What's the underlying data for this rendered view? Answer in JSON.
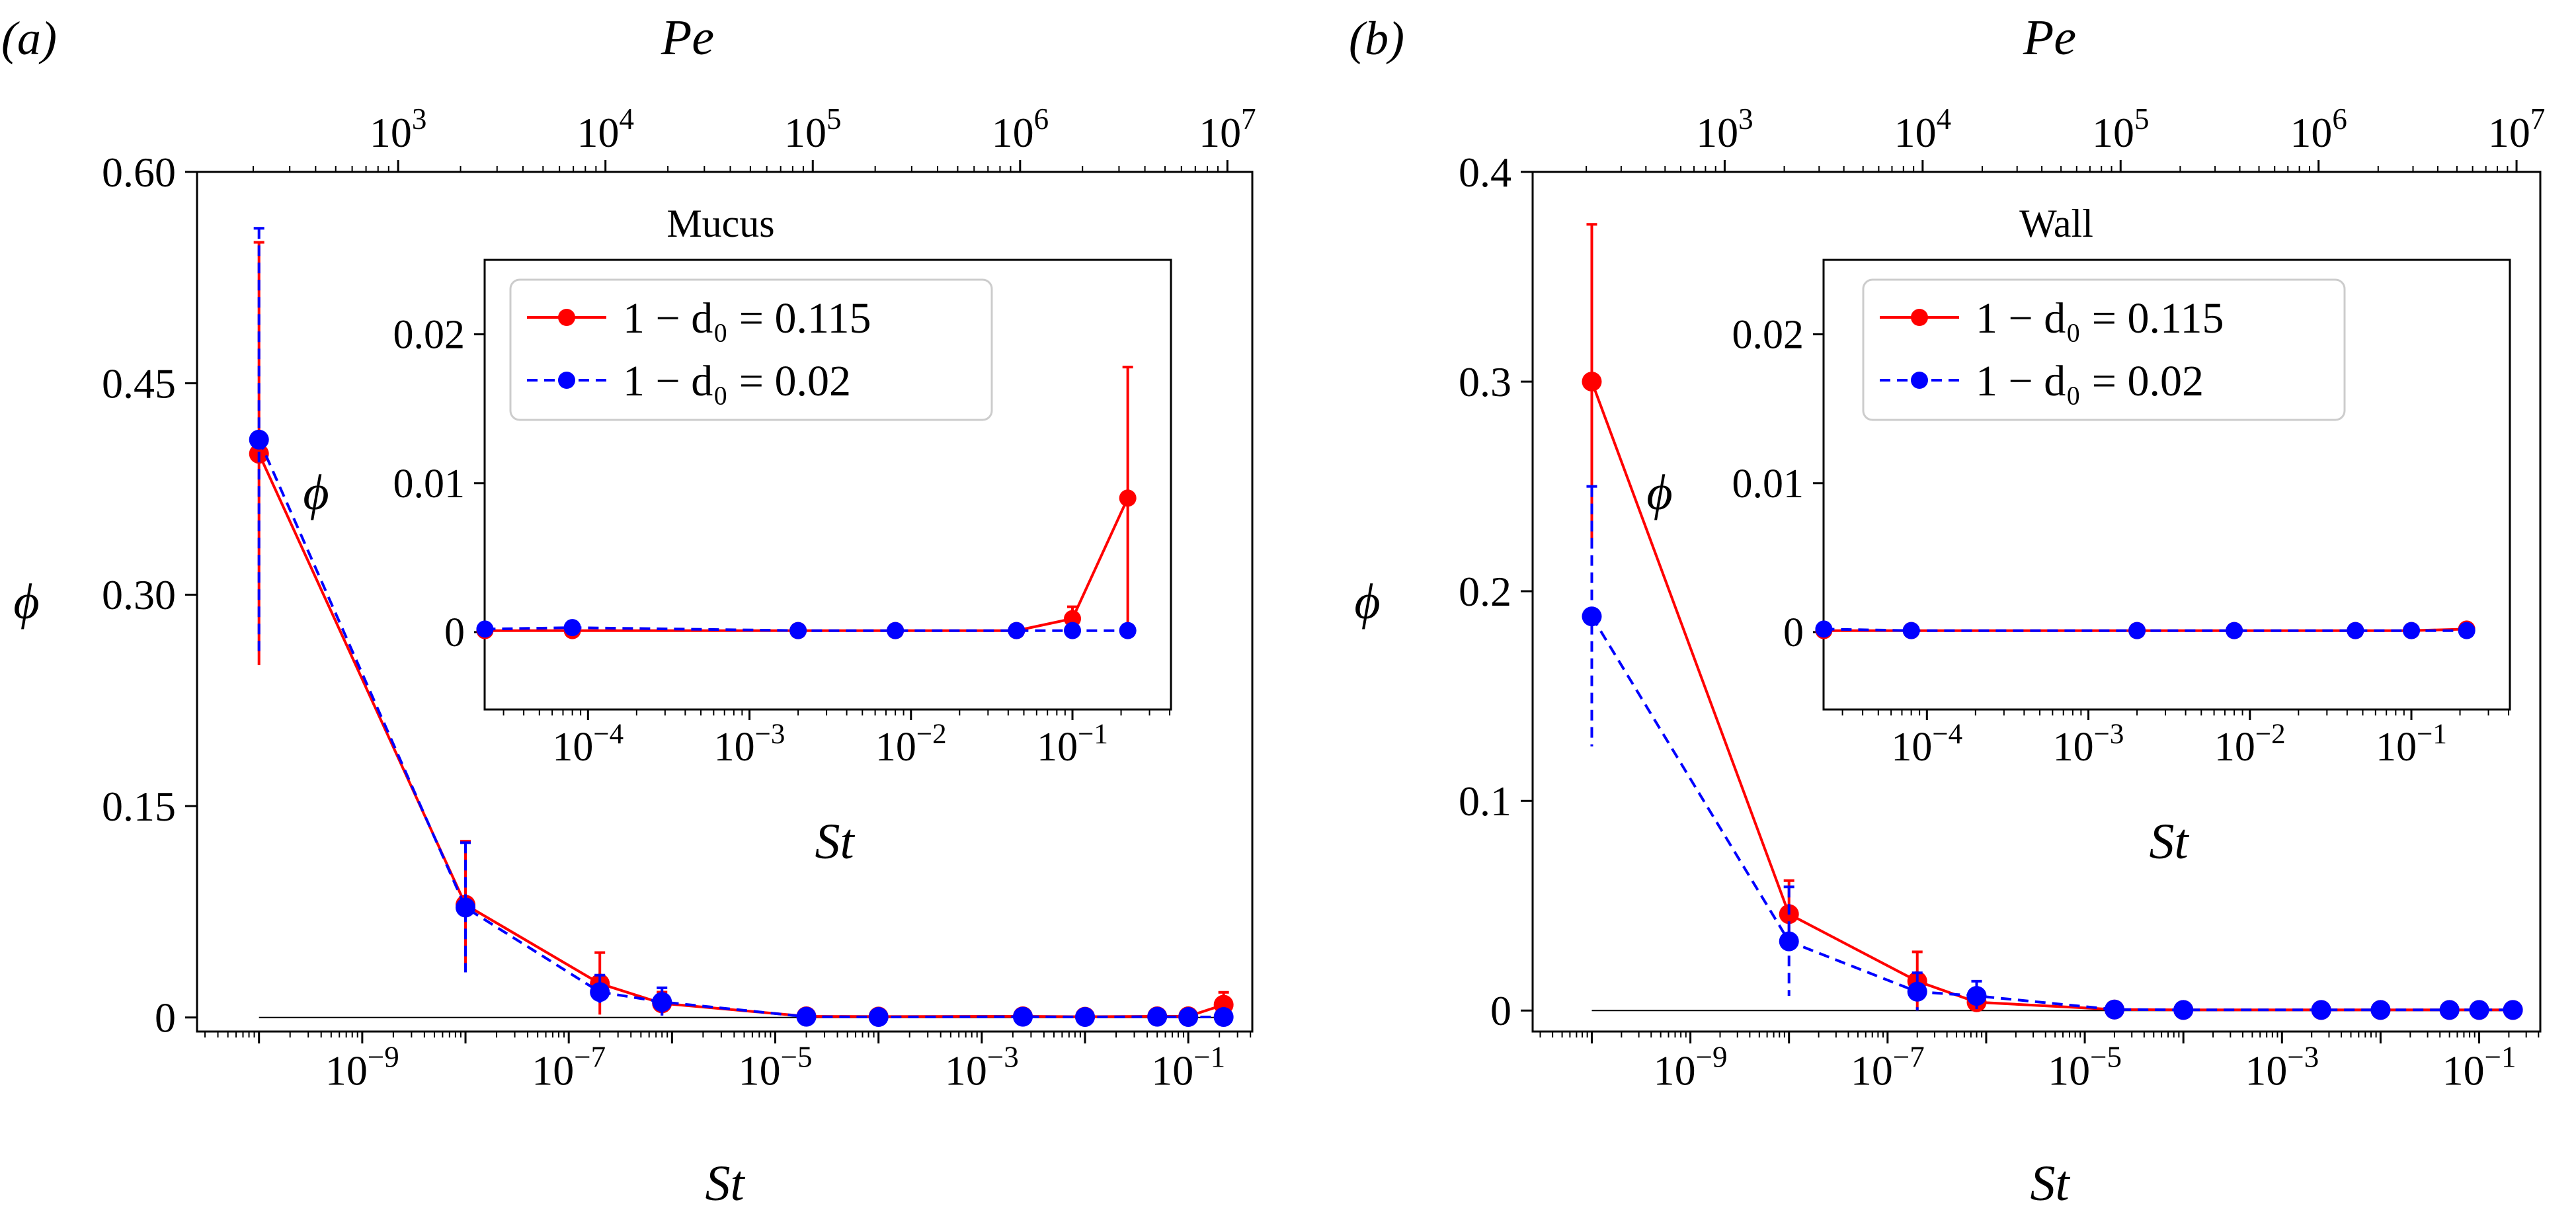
{
  "figure": {
    "panels": [
      {
        "panel_label": "(a)",
        "main": {
          "xlabel": "St",
          "ylabel": "ϕ",
          "top_xlabel": "Pe",
          "x_log_range": [
            -10.6,
            -0.38
          ],
          "ylim": [
            -0.01,
            0.6
          ],
          "yticks": [
            "0",
            "0.15",
            "0.30",
            "0.45",
            "0.60"
          ],
          "ytick_values": [
            0,
            0.15,
            0.3,
            0.45,
            0.6
          ],
          "xtick_exponents": [
            -9,
            -7,
            -5,
            -3,
            -1
          ],
          "top_log_range": [
            2.03,
            7.12
          ],
          "top_xtick_exponents": [
            3,
            4,
            5,
            6,
            7
          ]
        },
        "inset": {
          "title": "Mucus",
          "xlabel": "St",
          "ylabel": "ϕ",
          "x_log_range": [
            -4.64,
            -0.39
          ],
          "ylim": [
            -0.0052,
            0.025
          ],
          "yticks": [
            "0",
            "0.01",
            "0.02"
          ],
          "ytick_values": [
            0,
            0.01,
            0.02
          ],
          "xtick_exponents": [
            -4,
            -3,
            -2,
            -1
          ]
        }
      },
      {
        "panel_label": "(b)",
        "main": {
          "xlabel": "St",
          "ylabel": "ϕ",
          "top_xlabel": "Pe",
          "x_log_range": [
            -10.6,
            -0.38
          ],
          "ylim": [
            -0.01,
            0.4
          ],
          "yticks": [
            "0",
            "0.1",
            "0.2",
            "0.3",
            "0.4"
          ],
          "ytick_values": [
            0,
            0.1,
            0.2,
            0.3,
            0.4
          ],
          "xtick_exponents": [
            -9,
            -7,
            -5,
            -3,
            -1
          ],
          "top_log_range": [
            2.03,
            7.12
          ],
          "top_xtick_exponents": [
            3,
            4,
            5,
            6,
            7
          ]
        },
        "inset": {
          "title": "Wall",
          "xlabel": "St",
          "ylabel": "ϕ",
          "x_log_range": [
            -4.64,
            -0.39
          ],
          "ylim": [
            -0.0052,
            0.025
          ],
          "yticks": [
            "0",
            "0.01",
            "0.02"
          ],
          "ytick_values": [
            0,
            0.01,
            0.02
          ],
          "xtick_exponents": [
            -4,
            -3,
            -2,
            -1
          ]
        }
      }
    ],
    "legend": {
      "series_a_label": "1 − d₀ = 0.115",
      "series_b_label": "1 − d₀ = 0.02"
    },
    "colors": {
      "series_a": "#ff0000",
      "series_b": "#0000ff"
    }
  },
  "chart_data": [
    {
      "type": "line",
      "panel": "(a) main",
      "x_scale": "log",
      "series": [
        {
          "name": "1 − d₀ = 0.115",
          "x": [
            1e-10,
            1e-08,
            2e-07,
            8e-07,
            2e-05,
            0.0001,
            0.0025,
            0.01,
            0.05,
            0.1,
            0.22
          ],
          "y": [
            0.4,
            0.08,
            0.024,
            0.01,
            0.0008,
            0.0006,
            0.0008,
            0.0005,
            0.0008,
            0.0008,
            0.009
          ],
          "yerr": [
            0.15,
            0.045,
            0.022,
            0.008,
            0.001,
            0.0005,
            0.0005,
            0.0004,
            0.0005,
            0.001,
            0.0088
          ]
        },
        {
          "name": "1 − d₀ = 0.02",
          "x": [
            1e-10,
            1e-08,
            2e-07,
            8e-07,
            2e-05,
            0.0001,
            0.0025,
            0.01,
            0.05,
            0.1,
            0.22
          ],
          "y": [
            0.41,
            0.078,
            0.018,
            0.011,
            0.0005,
            0.0003,
            0.0005,
            0.0003,
            0.0005,
            0.0003,
            0.0003
          ],
          "yerr": [
            0.15,
            0.046,
            0.012,
            0.01,
            0.001,
            0.0005,
            0.0005,
            0.0004,
            0.0005,
            0.0004,
            0.0003
          ]
        }
      ]
    },
    {
      "type": "line",
      "panel": "(a) inset",
      "title": "Mucus",
      "x_scale": "log",
      "series": [
        {
          "name": "1 − d₀ = 0.115",
          "x": [
            2.3e-05,
            8e-05,
            0.002,
            0.008,
            0.045,
            0.1,
            0.22
          ],
          "y": [
            0.0001,
            0.0001,
            0.0001,
            0.0001,
            0.0001,
            0.0009,
            0.009
          ],
          "yerr": [
            0,
            0,
            0,
            0,
            0,
            0.0008,
            0.0088
          ]
        },
        {
          "name": "1 − d₀ = 0.02",
          "x": [
            2.3e-05,
            8e-05,
            0.002,
            0.008,
            0.045,
            0.1,
            0.22
          ],
          "y": [
            0.0002,
            0.0003,
            0.0001,
            0.0001,
            0.0001,
            0.0001,
            0.0001
          ],
          "yerr": [
            0,
            0,
            0,
            0,
            0,
            0,
            0
          ]
        }
      ]
    },
    {
      "type": "line",
      "panel": "(b) main",
      "x_scale": "log",
      "series": [
        {
          "name": "1 − d₀ = 0.115",
          "x": [
            1e-10,
            1e-08,
            2e-07,
            8e-07,
            2e-05,
            0.0001,
            0.0025,
            0.01,
            0.05,
            0.1,
            0.22
          ],
          "y": [
            0.3,
            0.046,
            0.014,
            0.004,
            0.0005,
            0.0003,
            0.0003,
            0.0003,
            0.0003,
            0.0003,
            0.0003
          ],
          "yerr": [
            0.075,
            0.016,
            0.014,
            0.004,
            0.0005,
            0.0003,
            0.0003,
            0.0003,
            0.0003,
            0.0003,
            0.0003
          ]
        },
        {
          "name": "1 − d₀ = 0.02",
          "x": [
            1e-10,
            1e-08,
            2e-07,
            8e-07,
            2e-05,
            0.0001,
            0.0025,
            0.01,
            0.05,
            0.1,
            0.22
          ],
          "y": [
            0.188,
            0.033,
            0.009,
            0.007,
            0.0005,
            0.0003,
            0.0003,
            0.0003,
            0.0003,
            0.0003,
            0.0003
          ],
          "yerr": [
            0.062,
            0.026,
            0.009,
            0.007,
            0.0005,
            0.0003,
            0.0003,
            0.0003,
            0.0003,
            0.0003,
            0.0003
          ]
        }
      ]
    },
    {
      "type": "line",
      "panel": "(b) inset",
      "title": "Wall",
      "x_scale": "log",
      "series": [
        {
          "name": "1 − d₀ = 0.115",
          "x": [
            2.3e-05,
            8e-05,
            0.002,
            0.008,
            0.045,
            0.1,
            0.22
          ],
          "y": [
            0.0001,
            0.0001,
            0.0001,
            0.0001,
            0.0001,
            0.0001,
            0.0002
          ],
          "yerr": [
            0,
            0,
            0,
            0,
            0,
            0,
            0
          ]
        },
        {
          "name": "1 − d₀ = 0.02",
          "x": [
            2.3e-05,
            8e-05,
            0.002,
            0.008,
            0.045,
            0.1,
            0.22
          ],
          "y": [
            0.0002,
            0.0001,
            0.0001,
            0.0001,
            0.0001,
            0.0001,
            0.0001
          ],
          "yerr": [
            0,
            0,
            0,
            0,
            0,
            0,
            0
          ]
        }
      ]
    }
  ]
}
